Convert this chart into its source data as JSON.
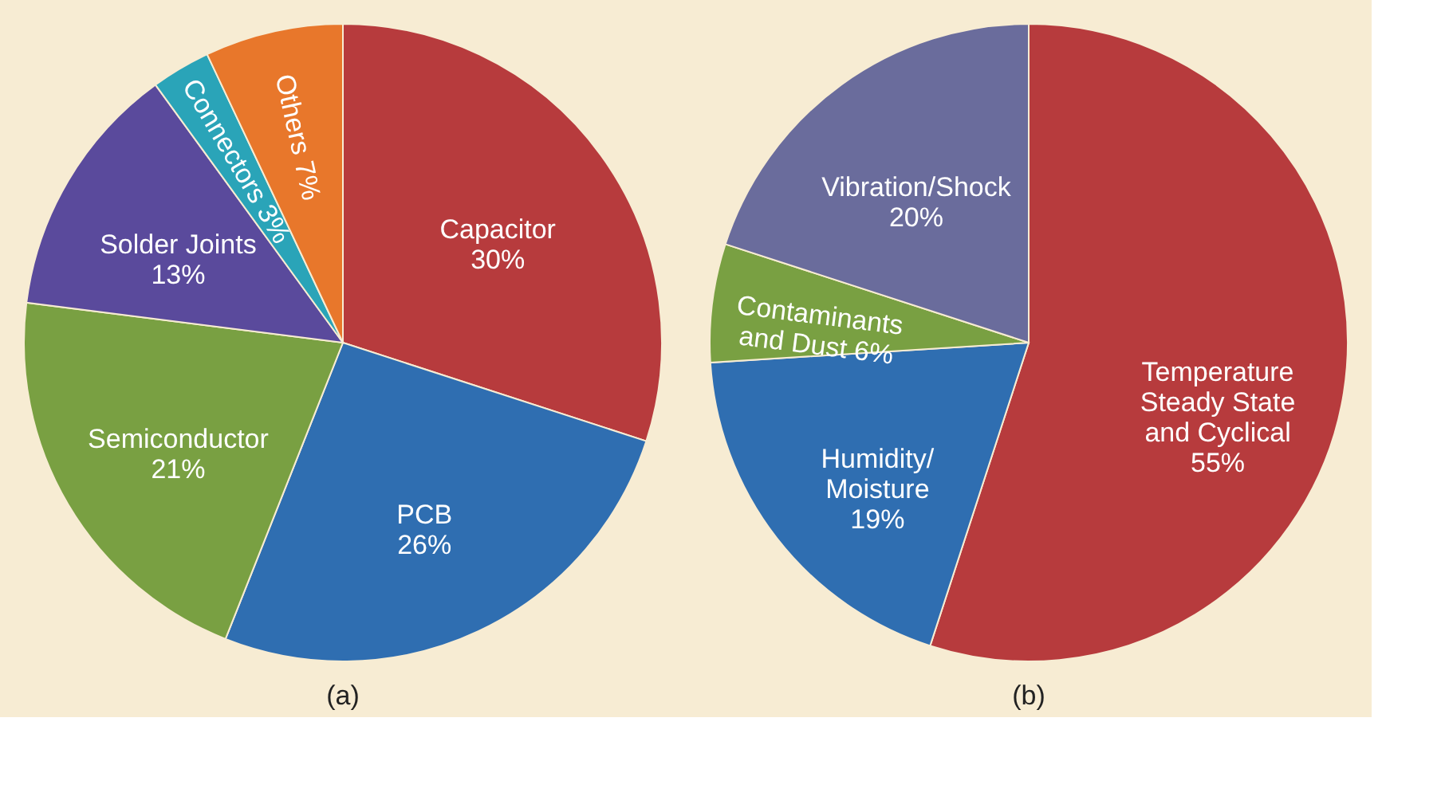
{
  "chart_data": [
    {
      "type": "pie",
      "title": "(a)",
      "categories": [
        "Capacitor",
        "PCB",
        "Semiconductor",
        "Solder Joints",
        "Connectors",
        "Others"
      ],
      "values": [
        30,
        26,
        21,
        13,
        3,
        7
      ],
      "value_labels": [
        "30%",
        "26%",
        "21%",
        "13%",
        "3%",
        "7%"
      ],
      "colors": [
        "#b73b3d",
        "#2f6eb1",
        "#79a042",
        "#5a4a9c",
        "#2aa4b8",
        "#e8772b"
      ],
      "legend": false
    },
    {
      "type": "pie",
      "title": "(b)",
      "categories": [
        "Temperature Steady State and Cyclical",
        "Humidity/ Moisture",
        "Contaminants and Dust",
        "Vibration/Shock"
      ],
      "values": [
        55,
        19,
        6,
        20
      ],
      "value_labels": [
        "55%",
        "19%",
        "6%",
        "20%"
      ],
      "colors": [
        "#b73b3d",
        "#2f6eb1",
        "#79a042",
        "#6a6c9c"
      ],
      "legend": false
    }
  ]
}
